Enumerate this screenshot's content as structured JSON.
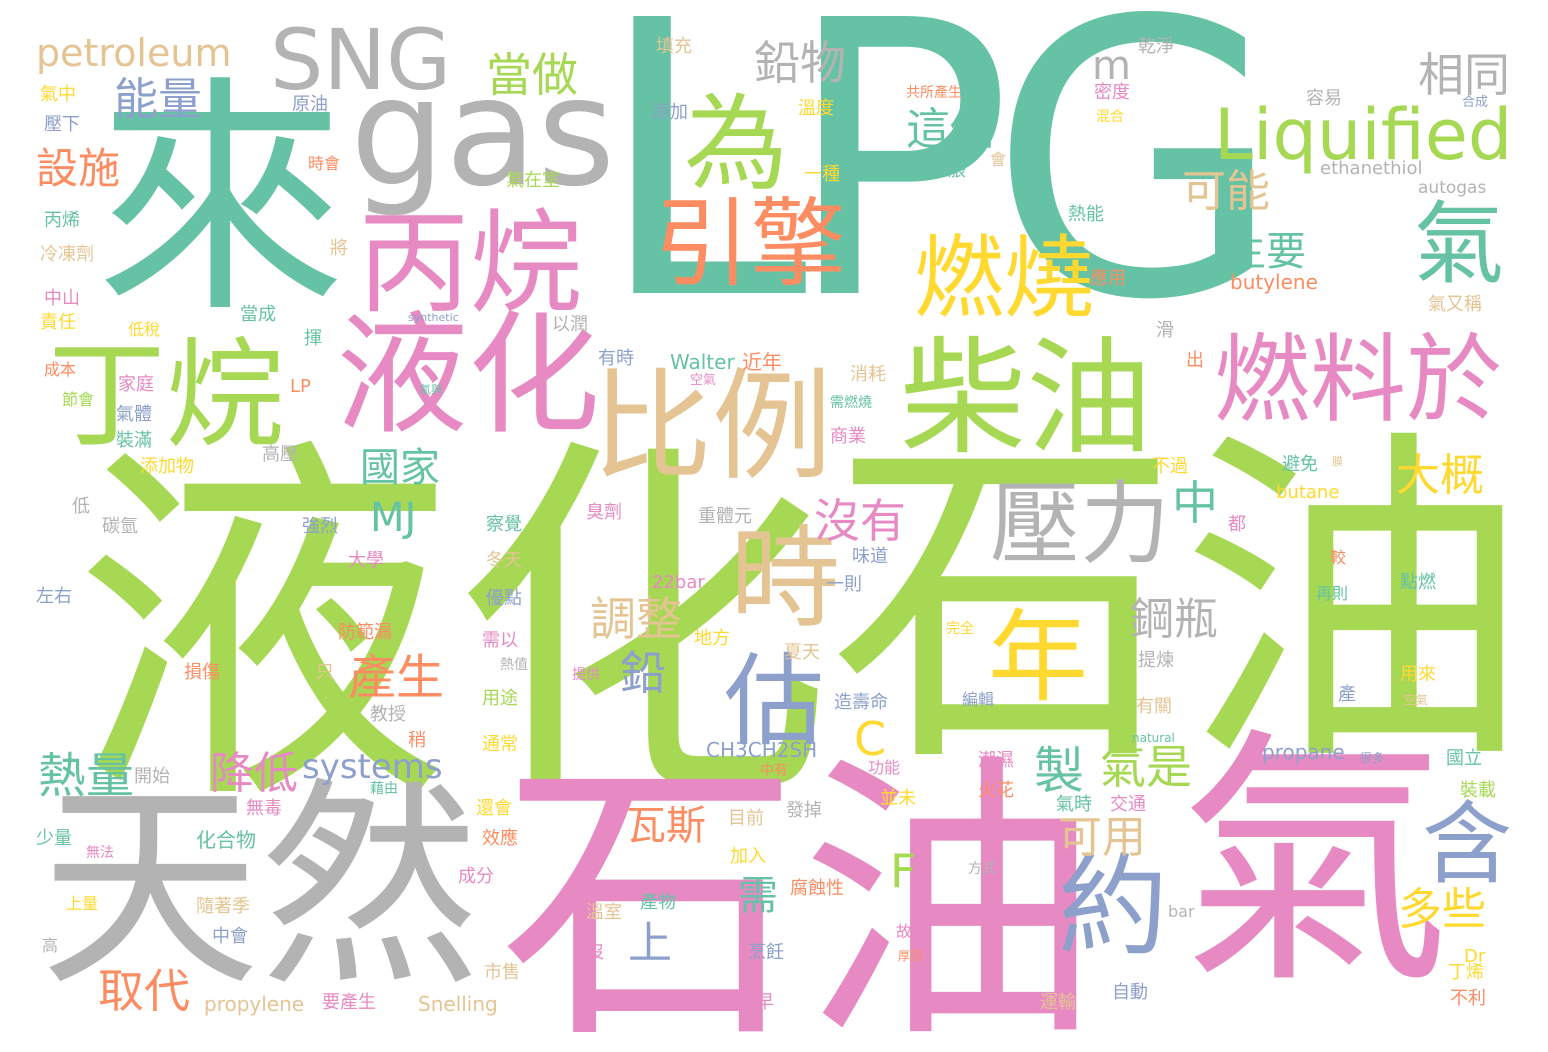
{
  "words": [
    {
      "id": "lpg",
      "text": "LPG",
      "color": "#66c2a5"
    },
    {
      "id": "yehua-big",
      "text": "液化",
      "color": "#a6d854"
    },
    {
      "id": "shiyou-big",
      "text": "石油",
      "color": "#a6d854"
    },
    {
      "id": "shiyou-pink",
      "text": "石油",
      "color": "#e78ac3"
    },
    {
      "id": "qi-big",
      "text": "氣",
      "color": "#e78ac3"
    },
    {
      "id": "tianran",
      "text": "天然",
      "color": "#b3b3b3"
    },
    {
      "id": "lai",
      "text": "來",
      "color": "#66c2a5"
    },
    {
      "id": "gas",
      "text": "gas",
      "color": "#b3b3b3"
    },
    {
      "id": "sng",
      "text": "SNG",
      "color": "#b3b3b3"
    },
    {
      "id": "bingwan",
      "text": "丙烷",
      "color": "#e78ac3"
    },
    {
      "id": "yehua-pink",
      "text": "液化",
      "color": "#e78ac3"
    },
    {
      "id": "dingwan",
      "text": "丁烷",
      "color": "#a6d854"
    },
    {
      "id": "wei",
      "text": "為",
      "color": "#a6d854"
    },
    {
      "id": "yinqing",
      "text": "引擎",
      "color": "#fc8d62"
    },
    {
      "id": "chaiyou",
      "text": "柴油",
      "color": "#a6d854"
    },
    {
      "id": "bili",
      "text": "比例",
      "color": "#e5c494"
    },
    {
      "id": "liquified",
      "text": "Liquified",
      "color": "#a6d854"
    },
    {
      "id": "ranshao",
      "text": "燃燒",
      "color": "#ffd92f"
    },
    {
      "id": "ranliao",
      "text": "燃料於",
      "color": "#e78ac3"
    },
    {
      "id": "yali",
      "text": "壓力",
      "color": "#b3b3b3"
    },
    {
      "id": "shi",
      "text": "時",
      "color": "#e5c494"
    },
    {
      "id": "nian",
      "text": "年",
      "color": "#ffd92f"
    },
    {
      "id": "gu",
      "text": "估",
      "color": "#8da0cb"
    },
    {
      "id": "yue",
      "text": "約",
      "color": "#8da0cb"
    },
    {
      "id": "qi-green",
      "text": "氣",
      "color": "#66c2a5"
    },
    {
      "id": "han",
      "text": "含",
      "color": "#8da0cb"
    },
    {
      "id": "qianwu",
      "text": "鉛物",
      "color": "#b3b3b3"
    },
    {
      "id": "petroleum",
      "text": "petroleum",
      "color": "#e5c494"
    },
    {
      "id": "nengliang",
      "text": "能量",
      "color": "#8da0cb"
    },
    {
      "id": "dangzuo",
      "text": "當做",
      "color": "#a6d854"
    },
    {
      "id": "m",
      "text": "m",
      "color": "#b3b3b3"
    },
    {
      "id": "xiangtong",
      "text": "相同",
      "color": "#b3b3b3"
    },
    {
      "id": "zhege",
      "text": "這個",
      "color": "#66c2a5"
    },
    {
      "id": "keneng",
      "text": "可能",
      "color": "#e5c494"
    },
    {
      "id": "zhuyao",
      "text": "主要",
      "color": "#66c2a5"
    },
    {
      "id": "sheshi",
      "text": "設施",
      "color": "#fc8d62"
    },
    {
      "id": "guojia",
      "text": "國家",
      "color": "#66c2a5"
    },
    {
      "id": "mj",
      "text": "MJ",
      "color": "#66c2a5"
    },
    {
      "id": "meiyou",
      "text": "沒有",
      "color": "#e78ac3"
    },
    {
      "id": "zhong",
      "text": "中",
      "color": "#66c2a5"
    },
    {
      "id": "dagai",
      "text": "大概",
      "color": "#ffd92f"
    },
    {
      "id": "tiaozheng",
      "text": "調整",
      "color": "#e5c494"
    },
    {
      "id": "gangping",
      "text": "鋼瓶",
      "color": "#b3b3b3"
    },
    {
      "id": "chansheng",
      "text": "產生",
      "color": "#fc8d62"
    },
    {
      "id": "qian",
      "text": "鉛",
      "color": "#8da0cb"
    },
    {
      "id": "c",
      "text": "C",
      "color": "#ffd92f"
    },
    {
      "id": "reliang",
      "text": "熱量",
      "color": "#66c2a5"
    },
    {
      "id": "jiangdi",
      "text": "降低",
      "color": "#e78ac3"
    },
    {
      "id": "systems",
      "text": "systems",
      "color": "#8da0cb"
    },
    {
      "id": "zhi",
      "text": "製",
      "color": "#66c2a5"
    },
    {
      "id": "qishi",
      "text": "氣是",
      "color": "#a6d854"
    },
    {
      "id": "wasi",
      "text": "瓦斯",
      "color": "#fc8d62"
    },
    {
      "id": "keyong",
      "text": "可用",
      "color": "#e5c494"
    },
    {
      "id": "f",
      "text": "F",
      "color": "#a6d854"
    },
    {
      "id": "xu",
      "text": "需",
      "color": "#66c2a5"
    },
    {
      "id": "duoxie",
      "text": "多些",
      "color": "#ffd92f"
    },
    {
      "id": "shang",
      "text": "上",
      "color": "#8da0cb"
    },
    {
      "id": "qudai",
      "text": "取代",
      "color": "#fc8d62"
    },
    {
      "id": "butylene",
      "text": "butylene",
      "color": "#fc8d62"
    },
    {
      "id": "ethanethiol",
      "text": "ethanethiol",
      "color": "#b3b3b3"
    },
    {
      "id": "autogas",
      "text": "autogas",
      "color": "#b3b3b3"
    },
    {
      "id": "walter",
      "text": "Walter",
      "color": "#66c2a5"
    },
    {
      "id": "jinnian",
      "text": "近年",
      "color": "#fc8d62"
    },
    {
      "id": "ch3",
      "text": "CH3CH2SH",
      "color": "#8da0cb"
    },
    {
      "id": "propane",
      "text": "propane",
      "color": "#8da0cb"
    },
    {
      "id": "butane",
      "text": "butane",
      "color": "#ffd92f"
    },
    {
      "id": "propylene",
      "text": "propylene",
      "color": "#e5c494"
    },
    {
      "id": "snelling",
      "text": "Snelling",
      "color": "#e5c494"
    },
    {
      "id": "bar22",
      "text": "22bar",
      "color": "#e78ac3"
    },
    {
      "id": "synthetic",
      "text": "synthetic",
      "color": "#8da0cb"
    },
    {
      "id": "natural",
      "text": "natural",
      "color": "#66c2a5"
    },
    {
      "id": "bar",
      "text": "bar",
      "color": "#b3b3b3"
    },
    {
      "id": "dr",
      "text": "Dr",
      "color": "#ffd92f"
    },
    {
      "id": "lp",
      "text": "LP",
      "color": "#fc8d62"
    },
    {
      "id": "tianchong",
      "text": "填充",
      "color": "#e5c494"
    },
    {
      "id": "qianjing",
      "text": "乾淨",
      "color": "#b3b3b3"
    },
    {
      "id": "qizhong",
      "text": "氣中",
      "color": "#ffd92f"
    },
    {
      "id": "yaxia",
      "text": "壓下",
      "color": "#8da0cb"
    },
    {
      "id": "yuanyou",
      "text": "原油",
      "color": "#8da0cb"
    },
    {
      "id": "tianjia",
      "text": "添加",
      "color": "#8da0cb"
    },
    {
      "id": "wendu",
      "text": "溫度",
      "color": "#ffd92f"
    },
    {
      "id": "gongsuo",
      "text": "共所產生",
      "color": "#fc8d62"
    },
    {
      "id": "midu",
      "text": "密度",
      "color": "#e78ac3"
    },
    {
      "id": "hunhe",
      "text": "混合",
      "color": "#ffd92f"
    },
    {
      "id": "rongyi",
      "text": "容易",
      "color": "#b3b3b3"
    },
    {
      "id": "hecheng",
      "text": "合成",
      "color": "#8da0cb"
    },
    {
      "id": "shihui",
      "text": "時會",
      "color": "#fc8d62"
    },
    {
      "id": "yizhong",
      "text": "一種",
      "color": "#ffd92f"
    },
    {
      "id": "rebengzhang",
      "text": "熱膨脹",
      "color": "#66c2a5"
    },
    {
      "id": "hui",
      "text": "會",
      "color": "#e5c494"
    },
    {
      "id": "qizaishi",
      "text": "氣在室",
      "color": "#a6d854"
    },
    {
      "id": "bingxi",
      "text": "丙烯",
      "color": "#66c2a5"
    },
    {
      "id": "lengdongji",
      "text": "冷凍劑",
      "color": "#e5c494"
    },
    {
      "id": "jiang",
      "text": "將",
      "color": "#e5c494"
    },
    {
      "id": "reneng",
      "text": "熱能",
      "color": "#66c2a5"
    },
    {
      "id": "yingyong",
      "text": "應用",
      "color": "#fc8d62"
    },
    {
      "id": "zhongshan",
      "text": "中山",
      "color": "#e78ac3"
    },
    {
      "id": "zeren",
      "text": "責任",
      "color": "#ffd92f"
    },
    {
      "id": "dangcheng",
      "text": "當成",
      "color": "#66c2a5"
    },
    {
      "id": "dishui",
      "text": "低稅",
      "color": "#ffd92f"
    },
    {
      "id": "hui2",
      "text": "揮",
      "color": "#66c2a5"
    },
    {
      "id": "yirun",
      "text": "以潤",
      "color": "#b3b3b3"
    },
    {
      "id": "qiyoucheng",
      "text": "氣又稱",
      "color": "#e5c494"
    },
    {
      "id": "hua",
      "text": "滑",
      "color": "#b3b3b3"
    },
    {
      "id": "youshi",
      "text": "有時",
      "color": "#8da0cb"
    },
    {
      "id": "chu",
      "text": "出",
      "color": "#fc8d62"
    },
    {
      "id": "chengben",
      "text": "成本",
      "color": "#fc8d62"
    },
    {
      "id": "jiating",
      "text": "家庭",
      "color": "#e78ac3"
    },
    {
      "id": "qiju",
      "text": "氣與",
      "color": "#66c2a5"
    },
    {
      "id": "kongqi",
      "text": "空氣",
      "color": "#e78ac3"
    },
    {
      "id": "xiaohao",
      "text": "消耗",
      "color": "#e5c494"
    },
    {
      "id": "jiehui",
      "text": "節會",
      "color": "#a6d854"
    },
    {
      "id": "qiti",
      "text": "氣體",
      "color": "#8da0cb"
    },
    {
      "id": "zhuangman",
      "text": "裝滿",
      "color": "#66c2a5"
    },
    {
      "id": "tianjiawu",
      "text": "添加物",
      "color": "#ffd92f"
    },
    {
      "id": "gaoya",
      "text": "高壓",
      "color": "#b3b3b3"
    },
    {
      "id": "xurandiao",
      "text": "需燃燒",
      "color": "#66c2a5"
    },
    {
      "id": "shangye",
      "text": "商業",
      "color": "#e78ac3"
    },
    {
      "id": "buguo",
      "text": "不過",
      "color": "#ffd92f"
    },
    {
      "id": "bimian",
      "text": "避免",
      "color": "#66c2a5"
    },
    {
      "id": "mo",
      "text": "膜",
      "color": "#e5c494"
    },
    {
      "id": "di",
      "text": "低",
      "color": "#b3b3b3"
    },
    {
      "id": "tanqing",
      "text": "碳氫",
      "color": "#b3b3b3"
    },
    {
      "id": "qianglie",
      "text": "強烈",
      "color": "#8da0cb"
    },
    {
      "id": "chaju",
      "text": "察覺",
      "color": "#66c2a5"
    },
    {
      "id": "chouji",
      "text": "臭劑",
      "color": "#e78ac3"
    },
    {
      "id": "zhongtiyuan",
      "text": "重體元",
      "color": "#b3b3b3"
    },
    {
      "id": "dou",
      "text": "都",
      "color": "#e78ac3"
    },
    {
      "id": "daxue",
      "text": "大學",
      "color": "#e78ac3"
    },
    {
      "id": "dongtian",
      "text": "冬天",
      "color": "#e5c494"
    },
    {
      "id": "weidao",
      "text": "味道",
      "color": "#8da0cb"
    },
    {
      "id": "jiao",
      "text": "較",
      "color": "#fc8d62"
    },
    {
      "id": "zuoyou",
      "text": "左右",
      "color": "#8da0cb"
    },
    {
      "id": "youdian",
      "text": "優點",
      "color": "#8da0cb"
    },
    {
      "id": "yize",
      "text": "一則",
      "color": "#8da0cb"
    },
    {
      "id": "zaize",
      "text": "再則",
      "color": "#66c2a5"
    },
    {
      "id": "dianran",
      "text": "點燃",
      "color": "#66c2a5"
    },
    {
      "id": "fangfanlou",
      "text": "防範漏",
      "color": "#fc8d62"
    },
    {
      "id": "xuyi",
      "text": "需以",
      "color": "#e78ac3"
    },
    {
      "id": "difang",
      "text": "地方",
      "color": "#ffd92f"
    },
    {
      "id": "xiatian",
      "text": "夏天",
      "color": "#e5c494"
    },
    {
      "id": "wanquan",
      "text": "完全",
      "color": "#ffd92f"
    },
    {
      "id": "tilian",
      "text": "提煉",
      "color": "#b3b3b3"
    },
    {
      "id": "sunshang",
      "text": "損傷",
      "color": "#fc8d62"
    },
    {
      "id": "zhi2",
      "text": "只",
      "color": "#e5c494"
    },
    {
      "id": "rezhi",
      "text": "熱值",
      "color": "#b3b3b3"
    },
    {
      "id": "tigong",
      "text": "提供",
      "color": "#e78ac3"
    },
    {
      "id": "yongtu",
      "text": "用途",
      "color": "#a6d854"
    },
    {
      "id": "bianji",
      "text": "編輯",
      "color": "#8da0cb"
    },
    {
      "id": "yonglai",
      "text": "用來",
      "color": "#ffd92f"
    },
    {
      "id": "chan",
      "text": "產",
      "color": "#8da0cb"
    },
    {
      "id": "jiaoshou",
      "text": "教授",
      "color": "#b3b3b3"
    },
    {
      "id": "zaoshouming",
      "text": "造壽命",
      "color": "#8da0cb"
    },
    {
      "id": "youguan",
      "text": "有關",
      "color": "#e5c494"
    },
    {
      "id": "kongqi2",
      "text": "空氣",
      "color": "#e5c494"
    },
    {
      "id": "shao",
      "text": "稍",
      "color": "#fc8d62"
    },
    {
      "id": "tongchang",
      "text": "通常",
      "color": "#ffd92f"
    },
    {
      "id": "kaishi",
      "text": "開始",
      "color": "#b3b3b3"
    },
    {
      "id": "gongneng",
      "text": "功能",
      "color": "#e78ac3"
    },
    {
      "id": "chaoshi",
      "text": "潮濕",
      "color": "#e78ac3"
    },
    {
      "id": "zhongyou",
      "text": "中有",
      "color": "#fc8d62"
    },
    {
      "id": "henduo",
      "text": "很多",
      "color": "#8da0cb"
    },
    {
      "id": "guoli",
      "text": "國立",
      "color": "#66c2a5"
    },
    {
      "id": "zhuangzai",
      "text": "裝載",
      "color": "#a6d854"
    },
    {
      "id": "wudu",
      "text": "無毒",
      "color": "#e78ac3"
    },
    {
      "id": "jiyou",
      "text": "藉由",
      "color": "#66c2a5"
    },
    {
      "id": "huanhui",
      "text": "還會",
      "color": "#ffd92f"
    },
    {
      "id": "huohua",
      "text": "火花",
      "color": "#fc8d62"
    },
    {
      "id": "bingwei",
      "text": "並未",
      "color": "#ffd92f"
    },
    {
      "id": "qishi2",
      "text": "氣時",
      "color": "#66c2a5"
    },
    {
      "id": "jiaotong",
      "text": "交通",
      "color": "#e78ac3"
    },
    {
      "id": "shaoliang",
      "text": "少量",
      "color": "#66c2a5"
    },
    {
      "id": "wufa",
      "text": "無法",
      "color": "#e78ac3"
    },
    {
      "id": "huahewu",
      "text": "化合物",
      "color": "#66c2a5"
    },
    {
      "id": "xiaoying",
      "text": "效應",
      "color": "#fc8d62"
    },
    {
      "id": "muqian",
      "text": "目前",
      "color": "#e5c494"
    },
    {
      "id": "fadiao",
      "text": "發掉",
      "color": "#b3b3b3"
    },
    {
      "id": "jiaru",
      "text": "加入",
      "color": "#ffd92f"
    },
    {
      "id": "fangshi",
      "text": "方式",
      "color": "#b3b3b3"
    },
    {
      "id": "chengfen",
      "text": "成分",
      "color": "#e78ac3"
    },
    {
      "id": "shangliang",
      "text": "上量",
      "color": "#ffd92f"
    },
    {
      "id": "suizhe",
      "text": "隨著季",
      "color": "#e5c494"
    },
    {
      "id": "wenshi",
      "text": "溫室",
      "color": "#e5c494"
    },
    {
      "id": "chanwu",
      "text": "產物",
      "color": "#66c2a5"
    },
    {
      "id": "fushixing",
      "text": "腐蝕性",
      "color": "#fc8d62"
    },
    {
      "id": "guqi",
      "text": "故其",
      "color": "#e78ac3"
    },
    {
      "id": "zhonghui",
      "text": "中會",
      "color": "#8da0cb"
    },
    {
      "id": "pengren",
      "text": "烹飪",
      "color": "#8da0cb"
    },
    {
      "id": "houyin",
      "text": "厚因",
      "color": "#fc8d62"
    },
    {
      "id": "gao",
      "text": "高",
      "color": "#b3b3b3"
    },
    {
      "id": "mei",
      "text": "沒",
      "color": "#e78ac3"
    },
    {
      "id": "shishou",
      "text": "市售",
      "color": "#e5c494"
    },
    {
      "id": "zidong",
      "text": "自動",
      "color": "#8da0cb"
    },
    {
      "id": "dingxi",
      "text": "丁烯",
      "color": "#ffd92f"
    },
    {
      "id": "buli",
      "text": "不利",
      "color": "#fc8d62"
    },
    {
      "id": "yaochansheng",
      "text": "要產生",
      "color": "#e78ac3"
    },
    {
      "id": "zuizao",
      "text": "最早",
      "color": "#e78ac3"
    },
    {
      "id": "yunshu",
      "text": "運輸",
      "color": "#e5c494"
    }
  ]
}
